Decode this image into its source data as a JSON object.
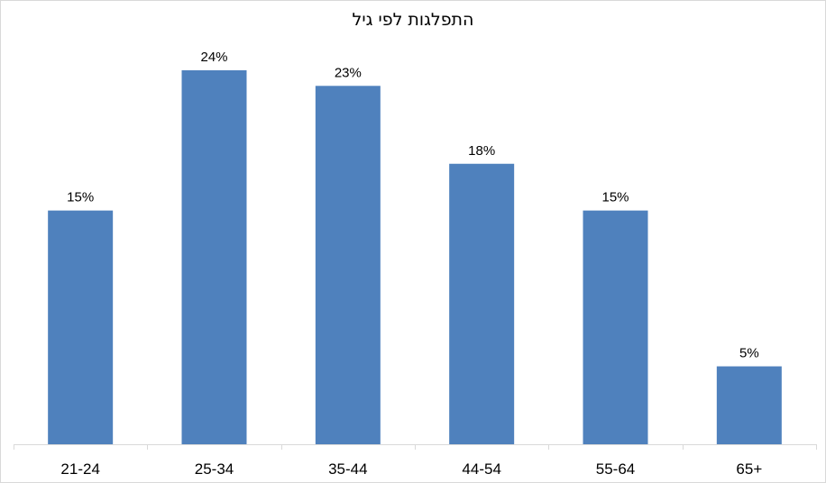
{
  "chart_data": {
    "type": "bar",
    "title": "התפלגות לפי גיל",
    "xlabel": "",
    "ylabel": "",
    "categories": [
      "21-24",
      "25-34",
      "35-44",
      "44-54",
      "55-64",
      "65+"
    ],
    "values": [
      15,
      24,
      23,
      18,
      15,
      5
    ],
    "value_labels": [
      "15%",
      "24%",
      "23%",
      "18%",
      "15%",
      "5%"
    ],
    "unit": "%",
    "ylim": [
      0,
      24
    ],
    "grid": false,
    "legend": "none",
    "bar_color": "#4f81bd"
  }
}
